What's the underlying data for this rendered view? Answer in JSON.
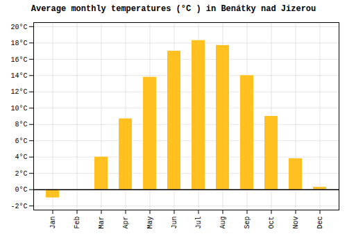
{
  "chart_data": {
    "type": "bar",
    "title": "Average monthly temperatures (°C ) in Benátky nad Jizerou",
    "categories": [
      "Jan",
      "Feb",
      "Mar",
      "Apr",
      "May",
      "Jun",
      "Jul",
      "Aug",
      "Sep",
      "Oct",
      "Nov",
      "Dec"
    ],
    "values": [
      -1.0,
      0.0,
      4.0,
      8.7,
      13.8,
      17.0,
      18.3,
      17.7,
      14.0,
      9.0,
      3.8,
      0.3
    ],
    "color": "#FFC020",
    "ylim": [
      -2.5,
      20.5
    ],
    "yticks": [
      {
        "value": -2,
        "label": "-2°C"
      },
      {
        "value": 0,
        "label": "0°C"
      },
      {
        "value": 2,
        "label": "2°C"
      },
      {
        "value": 4,
        "label": "4°C"
      },
      {
        "value": 6,
        "label": "6°C"
      },
      {
        "value": 8,
        "label": "8°C"
      },
      {
        "value": 10,
        "label": "10°C"
      },
      {
        "value": 12,
        "label": "12°C"
      },
      {
        "value": 14,
        "label": "14°C"
      },
      {
        "value": 16,
        "label": "16°C"
      },
      {
        "value": 18,
        "label": "18°C"
      },
      {
        "value": 20,
        "label": "20°C"
      }
    ],
    "grid": true
  }
}
